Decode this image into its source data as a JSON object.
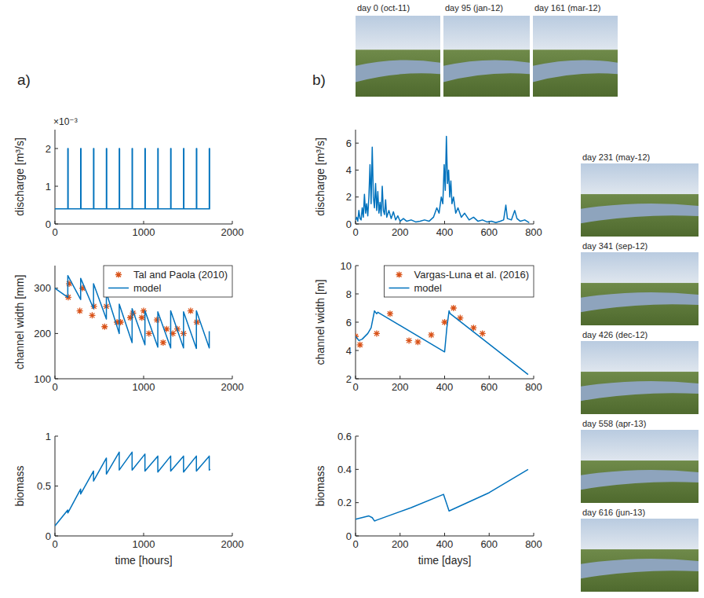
{
  "panel_labels": [
    "a)",
    "b)"
  ],
  "photos": [
    {
      "caption": "day 0 (oct-11)"
    },
    {
      "caption": "day 95 (jan-12)"
    },
    {
      "caption": "day 161 (mar-12)"
    },
    {
      "caption": "day 231 (may-12)"
    },
    {
      "caption": "day 341 (sep-12)"
    },
    {
      "caption": "day 426 (dec-12)"
    },
    {
      "caption": "day 558 (apr-13)"
    },
    {
      "caption": "day 616 (jun-13)"
    }
  ],
  "chart_data": [
    {
      "type": "line",
      "ylabel": "discharge [m³/s]",
      "y_multiplier": "×10⁻³",
      "xlim": [
        0,
        2000
      ],
      "xticks": [
        0,
        1000,
        2000
      ],
      "ylim": [
        0,
        2.5
      ],
      "yticks": [
        0,
        1,
        2
      ],
      "grid": false,
      "series": [
        {
          "type": "line",
          "color": "#0072bd",
          "x": [
            0,
            145,
            145,
            149,
            149,
            290,
            290,
            294,
            294,
            435,
            435,
            439,
            439,
            580,
            580,
            584,
            584,
            725,
            725,
            729,
            729,
            870,
            870,
            874,
            874,
            1015,
            1015,
            1019,
            1019,
            1160,
            1160,
            1164,
            1164,
            1305,
            1305,
            1309,
            1309,
            1450,
            1450,
            1454,
            1454,
            1595,
            1595,
            1599,
            1599,
            1740,
            1740,
            1744,
            1744,
            1750
          ],
          "values": [
            0.4,
            0.4,
            2,
            2,
            0.4,
            0.4,
            2,
            2,
            0.4,
            0.4,
            2,
            2,
            0.4,
            0.4,
            2,
            2,
            0.4,
            0.4,
            2,
            2,
            0.4,
            0.4,
            2,
            2,
            0.4,
            0.4,
            2,
            2,
            0.4,
            0.4,
            2,
            2,
            0.4,
            0.4,
            2,
            2,
            0.4,
            0.4,
            2,
            2,
            0.4,
            0.4,
            2,
            2,
            0.4,
            0.4,
            2,
            2,
            0.4,
            0.4
          ]
        }
      ]
    },
    {
      "type": "line",
      "ylabel": "channel width [mm]",
      "xlim": [
        0,
        2000
      ],
      "xticks": [
        0,
        1000,
        2000
      ],
      "ylim": [
        100,
        350
      ],
      "yticks": [
        100,
        200,
        300
      ],
      "grid": false,
      "legend": "upper right",
      "series": [
        {
          "name": "Tal and Paola (2010)",
          "type": "scatter",
          "marker": "asterisk",
          "color": "#d95319",
          "x": [
            150,
            160,
            280,
            310,
            420,
            440,
            560,
            580,
            700,
            740,
            850,
            880,
            980,
            1000,
            1060,
            1150,
            1220,
            1260,
            1330,
            1380,
            1450,
            1530,
            1600
          ],
          "values": [
            280,
            310,
            250,
            300,
            240,
            260,
            215,
            260,
            225,
            225,
            235,
            245,
            235,
            250,
            200,
            230,
            180,
            210,
            200,
            210,
            200,
            250,
            225
          ]
        },
        {
          "name": "model",
          "type": "line",
          "color": "#0072bd",
          "x": [
            0,
            145,
            145,
            290,
            290,
            435,
            435,
            580,
            580,
            725,
            725,
            870,
            870,
            1015,
            1015,
            1160,
            1160,
            1305,
            1305,
            1450,
            1450,
            1595,
            1595,
            1740,
            1740
          ],
          "values": [
            300,
            280,
            328,
            275,
            322,
            255,
            310,
            232,
            290,
            200,
            265,
            180,
            255,
            175,
            250,
            170,
            248,
            168,
            250,
            168,
            248,
            167,
            250,
            168,
            205
          ]
        }
      ]
    },
    {
      "type": "line",
      "ylabel": "biomass",
      "xlabel": "time [hours]",
      "xlim": [
        0,
        2000
      ],
      "xticks": [
        0,
        1000,
        2000
      ],
      "ylim": [
        0,
        1
      ],
      "yticks": [
        0,
        0.5,
        1
      ],
      "grid": false,
      "series": [
        {
          "type": "line",
          "color": "#0072bd",
          "x": [
            0,
            145,
            145,
            290,
            290,
            435,
            435,
            580,
            580,
            725,
            725,
            870,
            870,
            1015,
            1015,
            1160,
            1160,
            1305,
            1305,
            1450,
            1450,
            1595,
            1595,
            1740,
            1740,
            1750
          ],
          "values": [
            0.1,
            0.26,
            0.23,
            0.47,
            0.42,
            0.65,
            0.55,
            0.78,
            0.62,
            0.84,
            0.66,
            0.84,
            0.66,
            0.82,
            0.65,
            0.8,
            0.64,
            0.8,
            0.65,
            0.8,
            0.64,
            0.8,
            0.65,
            0.8,
            0.66,
            0.67
          ]
        }
      ]
    },
    {
      "type": "line",
      "ylabel": "discharge [m³/s]",
      "xlim": [
        0,
        800
      ],
      "xticks": [
        0,
        200,
        400,
        600,
        800
      ],
      "ylim": [
        0,
        7
      ],
      "yticks": [
        0,
        2,
        4,
        6
      ],
      "grid": false,
      "series": [
        {
          "type": "line",
          "color": "#0072bd",
          "x": [
            0,
            5,
            10,
            15,
            20,
            25,
            30,
            35,
            40,
            45,
            50,
            55,
            60,
            65,
            70,
            75,
            80,
            85,
            90,
            95,
            100,
            105,
            110,
            115,
            120,
            125,
            130,
            135,
            140,
            150,
            160,
            170,
            180,
            190,
            200,
            215,
            230,
            250,
            270,
            290,
            310,
            330,
            350,
            365,
            375,
            385,
            392,
            398,
            403,
            408,
            413,
            418,
            423,
            428,
            433,
            440,
            450,
            460,
            475,
            490,
            510,
            530,
            550,
            570,
            590,
            610,
            630,
            650,
            665,
            675,
            682,
            700,
            715,
            725,
            740,
            760,
            780
          ],
          "values": [
            0.3,
            0.5,
            0.2,
            1.0,
            0.4,
            0.3,
            1.2,
            0.5,
            2.2,
            0.8,
            1.5,
            0.6,
            2.0,
            4.4,
            1.5,
            5.7,
            2.0,
            1.2,
            3.0,
            1.0,
            2.4,
            0.8,
            1.6,
            0.6,
            2.8,
            1.0,
            0.7,
            1.8,
            0.5,
            1.0,
            0.4,
            0.9,
            0.3,
            0.6,
            0.2,
            0.4,
            0.2,
            0.3,
            0.15,
            0.2,
            0.3,
            0.2,
            0.5,
            1.2,
            0.8,
            2.0,
            1.5,
            4.4,
            2.5,
            6.5,
            3.0,
            4.0,
            2.0,
            3.2,
            1.5,
            2.0,
            0.8,
            1.2,
            0.5,
            0.8,
            0.3,
            0.5,
            0.2,
            0.3,
            0.15,
            0.2,
            0.1,
            0.2,
            0.3,
            1.4,
            0.4,
            0.3,
            1.0,
            0.4,
            0.2,
            0.3,
            0.1
          ]
        }
      ]
    },
    {
      "type": "line",
      "ylabel": "channel width [m]",
      "xlim": [
        0,
        800
      ],
      "xticks": [
        0,
        200,
        400,
        600,
        800
      ],
      "ylim": [
        2,
        10
      ],
      "yticks": [
        2,
        4,
        6,
        8,
        10
      ],
      "grid": false,
      "legend": "upper right",
      "series": [
        {
          "name": "Vargas-Luna et al. (2016)",
          "type": "scatter",
          "marker": "asterisk",
          "color": "#d95319",
          "x": [
            0,
            20,
            95,
            155,
            240,
            280,
            340,
            400,
            440,
            470,
            530,
            570
          ],
          "values": [
            5,
            4.4,
            5.2,
            6.6,
            4.7,
            4.6,
            5.1,
            6.0,
            7.0,
            6.3,
            5.6,
            5.2
          ]
        },
        {
          "name": "model",
          "type": "line",
          "color": "#0072bd",
          "x": [
            0,
            15,
            30,
            55,
            70,
            85,
            95,
            100,
            400,
            410,
            420,
            425,
            775
          ],
          "values": [
            5.0,
            4.7,
            4.8,
            5.2,
            5.6,
            6.8,
            6.6,
            6.7,
            3.9,
            5.6,
            6.8,
            6.6,
            2.3
          ]
        }
      ]
    },
    {
      "type": "line",
      "ylabel": "biomass",
      "xlabel": "time [days]",
      "xlim": [
        0,
        800
      ],
      "xticks": [
        0,
        200,
        400,
        600,
        800
      ],
      "ylim": [
        0,
        0.6
      ],
      "yticks": [
        0,
        0.2,
        0.4,
        0.6
      ],
      "grid": false,
      "series": [
        {
          "type": "line",
          "color": "#0072bd",
          "x": [
            0,
            60,
            75,
            85,
            95,
            250,
            395,
            405,
            420,
            600,
            775
          ],
          "values": [
            0.1,
            0.12,
            0.11,
            0.09,
            0.095,
            0.17,
            0.25,
            0.21,
            0.15,
            0.26,
            0.4
          ]
        }
      ]
    }
  ]
}
